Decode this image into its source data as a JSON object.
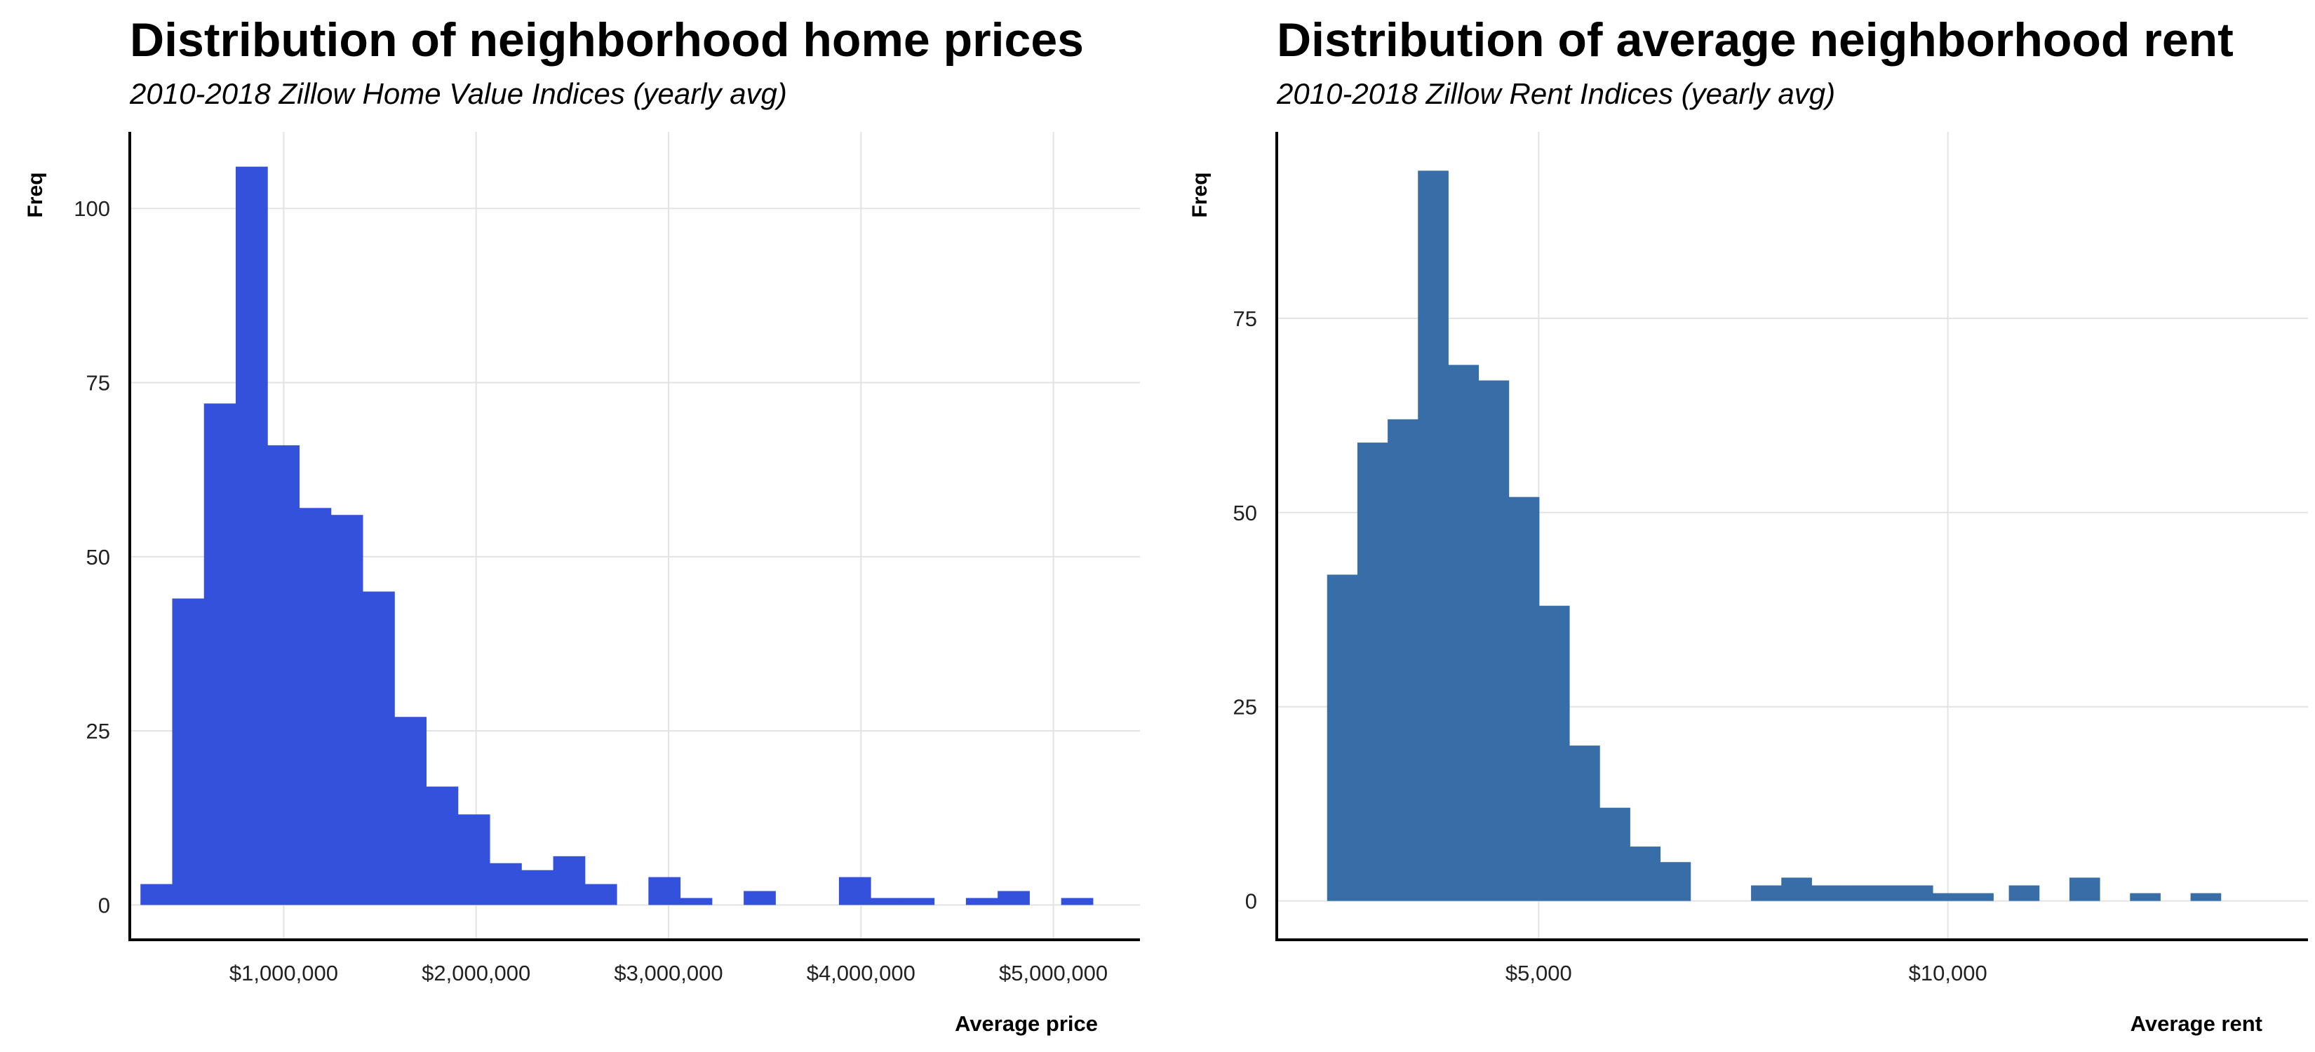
{
  "chart_data": [
    {
      "type": "bar",
      "title": "Distribution of neighborhood home prices",
      "subtitle": "2010-2018 Zillow Home Value Indices (yearly avg)",
      "xlabel": "Average price",
      "ylabel": "Freq",
      "bar_color": "#3451DB",
      "grid": true,
      "xlim": [
        200000,
        5450000
      ],
      "ylim": [
        -5,
        111
      ],
      "bin_width": 165000,
      "x_ticks": [
        1000000,
        2000000,
        3000000,
        4000000,
        5000000
      ],
      "x_tick_labels": [
        "$1,000,000",
        "$2,000,000",
        "$3,000,000",
        "$4,000,000",
        "$5,000,000"
      ],
      "y_ticks": [
        0,
        25,
        50,
        75,
        100
      ],
      "y_tick_labels": [
        "0",
        "25",
        "50",
        "75",
        "100"
      ],
      "x": [
        338000,
        503000,
        668000,
        833000,
        998000,
        1163000,
        1328000,
        1493000,
        1658000,
        1823000,
        1988000,
        2153000,
        2318000,
        2483000,
        2648000,
        2978000,
        3143000,
        3473000,
        3968000,
        4133000,
        4298000,
        4628000,
        4793000,
        5123000
      ],
      "values": [
        3,
        44,
        72,
        106,
        66,
        57,
        56,
        45,
        27,
        17,
        13,
        6,
        5,
        7,
        3,
        4,
        1,
        2,
        4,
        1,
        1,
        1,
        2,
        1
      ]
    },
    {
      "type": "bar",
      "title": "Distribution of average neighborhood rent",
      "subtitle": "2010-2018 Zillow Rent Indices (yearly avg)",
      "xlabel": "Average rent",
      "ylabel": "Freq",
      "bar_color": "#386EA8",
      "grid": true,
      "xlim": [
        1800,
        14400
      ],
      "ylim": [
        -5,
        99
      ],
      "bin_width": 370,
      "x_ticks": [
        5000,
        10000
      ],
      "x_tick_labels": [
        "$5,000",
        "$10,000"
      ],
      "y_ticks": [
        0,
        25,
        50,
        75
      ],
      "y_tick_labels": [
        "0",
        "25",
        "50",
        "75"
      ],
      "x": [
        2600,
        2970,
        3340,
        3710,
        4080,
        4450,
        4820,
        5190,
        5560,
        5930,
        6300,
        6670,
        7780,
        8150,
        8520,
        8890,
        9260,
        9630,
        10000,
        10370,
        10930,
        11670,
        12410,
        13150
      ],
      "values": [
        42,
        59,
        62,
        94,
        69,
        67,
        52,
        38,
        20,
        12,
        7,
        5,
        2,
        3,
        2,
        2,
        2,
        2,
        1,
        1,
        2,
        3,
        1,
        1
      ]
    }
  ]
}
